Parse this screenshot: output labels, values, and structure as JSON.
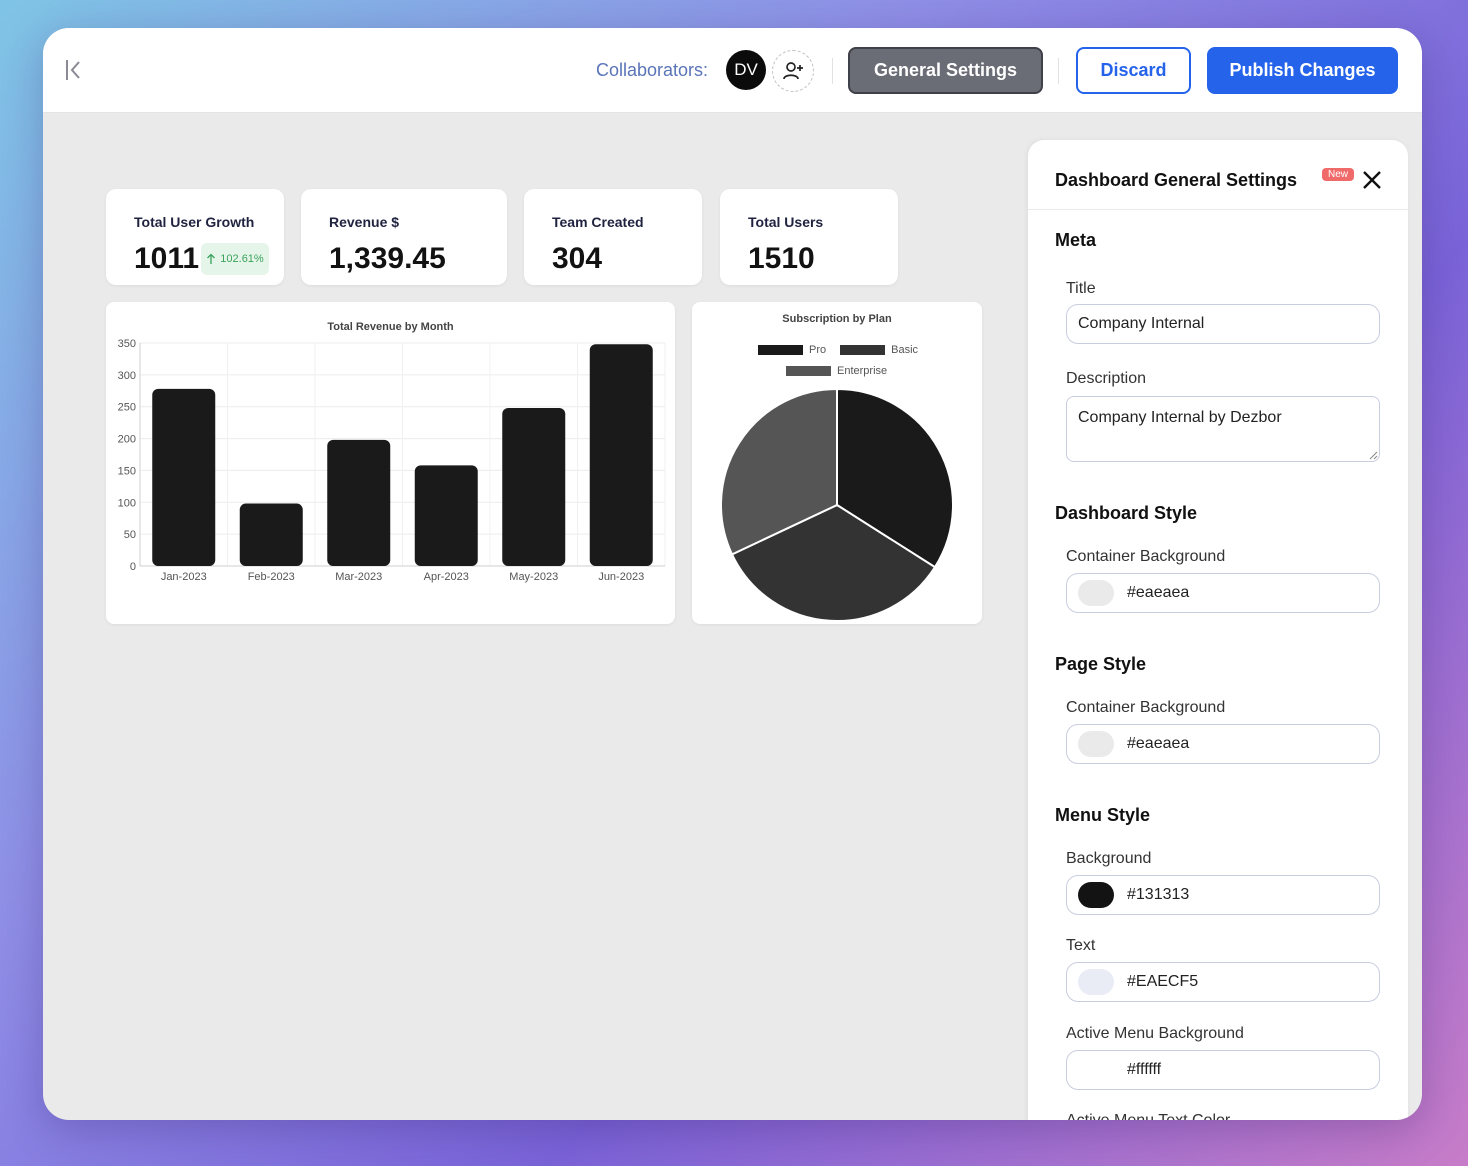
{
  "topbar": {
    "collaborators_label": "Collaborators:",
    "avatar_initials": "DV",
    "general_settings_label": "General Settings",
    "discard_label": "Discard",
    "publish_label": "Publish Changes"
  },
  "stats": [
    {
      "label": "Total User Growth",
      "value": "1011",
      "badge": "102.61%"
    },
    {
      "label": "Revenue $",
      "value": "1,339.45"
    },
    {
      "label": "Team Created",
      "value": "304"
    },
    {
      "label": "Total Users",
      "value": "1510"
    }
  ],
  "colors": {
    "accent": "#2563eb",
    "bar": "#1a1a1a",
    "pie_pro": "#1a1a1a",
    "pie_basic": "#333333",
    "pie_enterprise": "#555555"
  },
  "chart_data": [
    {
      "type": "bar",
      "title": "Total Revenue by Month",
      "categories": [
        "Jan-2023",
        "Feb-2023",
        "Mar-2023",
        "Apr-2023",
        "May-2023",
        "Jun-2023"
      ],
      "values": [
        278,
        98,
        198,
        158,
        248,
        348
      ],
      "ylim": [
        0,
        350
      ],
      "yticks": [
        0,
        50,
        100,
        150,
        200,
        250,
        300,
        350
      ],
      "xlabel": "",
      "ylabel": ""
    },
    {
      "type": "pie",
      "title": "Subscription by Plan",
      "labels": [
        "Pro",
        "Basic",
        "Enterprise"
      ],
      "values": [
        34,
        34,
        32
      ],
      "legend_position": "top"
    }
  ],
  "settings": {
    "title": "Dashboard General Settings",
    "new_badge": "New",
    "meta_heading": "Meta",
    "title_label": "Title",
    "title_value": "Company Internal",
    "description_label": "Description",
    "description_value": "Company Internal by Dezbor",
    "dashboard_style_heading": "Dashboard Style",
    "dashboard_bg_label": "Container Background",
    "dashboard_bg_value": "#eaeaea",
    "page_style_heading": "Page Style",
    "page_bg_label": "Container Background",
    "page_bg_value": "#eaeaea",
    "menu_style_heading": "Menu Style",
    "menu_bg_label": "Background",
    "menu_bg_value": "#131313",
    "menu_text_label": "Text",
    "menu_text_value": "#EAECF5",
    "active_bg_label": "Active Menu Background",
    "active_bg_value": "#ffffff",
    "active_text_label": "Active Menu Text Color"
  }
}
